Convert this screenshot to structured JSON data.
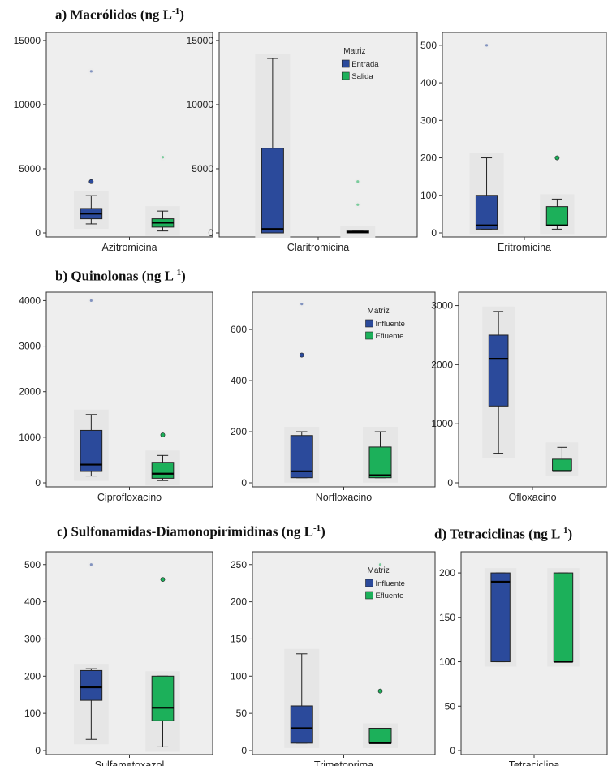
{
  "sections": {
    "a": {
      "title": "a) Macrólidos (ng L",
      "sup": "-1",
      "close": ")"
    },
    "b": {
      "title": "b) Quinolonas (ng L",
      "sup": "-1",
      "close": ")"
    },
    "c": {
      "title": "c) Sulfonamidas-Diamonopirimidinas (ng L",
      "sup": "-1",
      "close": ")"
    },
    "d": {
      "title": "d) Tetraciclinas (ng L",
      "sup": "-1",
      "close": ")"
    }
  },
  "colors": {
    "group1": "#2b4a9b",
    "group2": "#1cb05a",
    "panel_bg": "#eeeeee",
    "frame": "#333333"
  },
  "chart_data": [
    {
      "type": "box",
      "section": "a",
      "xlabel": "Azitromicina",
      "ylim": [
        0,
        15500
      ],
      "yticks": [
        0,
        5000,
        10000,
        15000
      ],
      "boxes": [
        {
          "group": "group1",
          "min": 700,
          "q1": 1100,
          "median": 1500,
          "q3": 1900,
          "max": 2900,
          "outliers": [
            4000
          ],
          "extremes": [
            12600
          ]
        },
        {
          "group": "group2",
          "min": 150,
          "q1": 450,
          "median": 800,
          "q3": 1100,
          "max": 1700,
          "outliers": [],
          "extremes": [
            5900
          ]
        }
      ]
    },
    {
      "type": "box",
      "section": "a",
      "xlabel": "Claritromicina",
      "ylim": [
        0,
        15500
      ],
      "yticks": [
        0,
        5000,
        10000,
        15000
      ],
      "legend": {
        "title": "Matriz",
        "items": [
          "Entrada",
          "Salida"
        ]
      },
      "boxes": [
        {
          "group": "group1",
          "min": 0,
          "q1": 0,
          "median": 300,
          "q3": 6600,
          "max": 13600,
          "outliers": [],
          "extremes": []
        },
        {
          "group": "group2",
          "min": 0,
          "q1": 0,
          "median": 60,
          "q3": 150,
          "max": 150,
          "outliers": [],
          "extremes": [
            2200,
            4000
          ]
        }
      ]
    },
    {
      "type": "box",
      "section": "a",
      "xlabel": "Eritromicina",
      "ylim": [
        0,
        530
      ],
      "yticks": [
        0,
        100,
        200,
        300,
        400,
        500
      ],
      "boxes": [
        {
          "group": "group1",
          "min": 10,
          "q1": 10,
          "median": 20,
          "q3": 100,
          "max": 200,
          "outliers": [],
          "extremes": [
            500
          ]
        },
        {
          "group": "group2",
          "min": 10,
          "q1": 20,
          "median": 20,
          "q3": 70,
          "max": 90,
          "outliers": [
            200
          ],
          "extremes": []
        }
      ]
    },
    {
      "type": "box",
      "section": "b",
      "xlabel": "Ciprofloxacino",
      "ylim": [
        0,
        4150
      ],
      "yticks": [
        0,
        1000,
        2000,
        3000,
        4000
      ],
      "boxes": [
        {
          "group": "group1",
          "min": 150,
          "q1": 250,
          "median": 400,
          "q3": 1150,
          "max": 1500,
          "outliers": [],
          "extremes": [
            4000
          ]
        },
        {
          "group": "group2",
          "min": 50,
          "q1": 100,
          "median": 200,
          "q3": 450,
          "max": 600,
          "outliers": [
            1050
          ],
          "extremes": []
        }
      ]
    },
    {
      "type": "box",
      "section": "b",
      "xlabel": "Norfloxacino",
      "ylim": [
        0,
        740
      ],
      "yticks": [
        0,
        200,
        400,
        600
      ],
      "legend": {
        "title": "Matriz",
        "items": [
          "Influente",
          "Efluente"
        ]
      },
      "boxes": [
        {
          "group": "group1",
          "min": 20,
          "q1": 20,
          "median": 45,
          "q3": 185,
          "max": 200,
          "outliers": [
            500
          ],
          "extremes": [
            700
          ]
        },
        {
          "group": "group2",
          "min": 20,
          "q1": 20,
          "median": 30,
          "q3": 140,
          "max": 200,
          "outliers": [],
          "extremes": []
        }
      ]
    },
    {
      "type": "box",
      "section": "b",
      "xlabel": "Ofloxacino",
      "ylim": [
        0,
        3200
      ],
      "yticks": [
        0,
        1000,
        2000,
        3000
      ],
      "boxes": [
        {
          "group": "group1",
          "min": 500,
          "q1": 1300,
          "median": 2100,
          "q3": 2500,
          "max": 2900,
          "outliers": [],
          "extremes": []
        },
        {
          "group": "group2",
          "min": 200,
          "q1": 200,
          "median": 200,
          "q3": 400,
          "max": 600,
          "outliers": [],
          "extremes": []
        }
      ]
    },
    {
      "type": "box",
      "section": "c",
      "xlabel": "Sulfametoxazol",
      "ylim": [
        0,
        530
      ],
      "yticks": [
        0,
        100,
        200,
        300,
        400,
        500
      ],
      "boxes": [
        {
          "group": "group1",
          "min": 30,
          "q1": 135,
          "median": 170,
          "q3": 215,
          "max": 220,
          "outliers": [],
          "extremes": [
            500
          ]
        },
        {
          "group": "group2",
          "min": 10,
          "q1": 80,
          "median": 115,
          "q3": 200,
          "max": 200,
          "outliers": [
            460
          ],
          "extremes": []
        }
      ]
    },
    {
      "type": "box",
      "section": "c",
      "xlabel": "Trimetoprima",
      "ylim": [
        0,
        265
      ],
      "yticks": [
        0,
        50,
        100,
        150,
        200,
        250
      ],
      "legend": {
        "title": "Matriz",
        "items": [
          "Influente",
          "Efluente"
        ]
      },
      "boxes": [
        {
          "group": "group1",
          "min": 10,
          "q1": 10,
          "median": 30,
          "q3": 60,
          "max": 130,
          "outliers": [],
          "extremes": []
        },
        {
          "group": "group2",
          "min": 10,
          "q1": 10,
          "median": 10,
          "q3": 30,
          "max": 30,
          "outliers": [
            80
          ],
          "extremes": [
            250
          ]
        }
      ]
    },
    {
      "type": "box",
      "section": "d",
      "xlabel": "Tetraciclina",
      "ylim": [
        0,
        222
      ],
      "yticks": [
        0,
        50,
        100,
        150,
        200
      ],
      "boxes": [
        {
          "group": "group1",
          "min": 100,
          "q1": 100,
          "median": 190,
          "q3": 200,
          "max": 200,
          "outliers": [],
          "extremes": []
        },
        {
          "group": "group2",
          "min": 100,
          "q1": 100,
          "median": 100,
          "q3": 200,
          "max": 200,
          "outliers": [],
          "extremes": []
        }
      ]
    }
  ]
}
